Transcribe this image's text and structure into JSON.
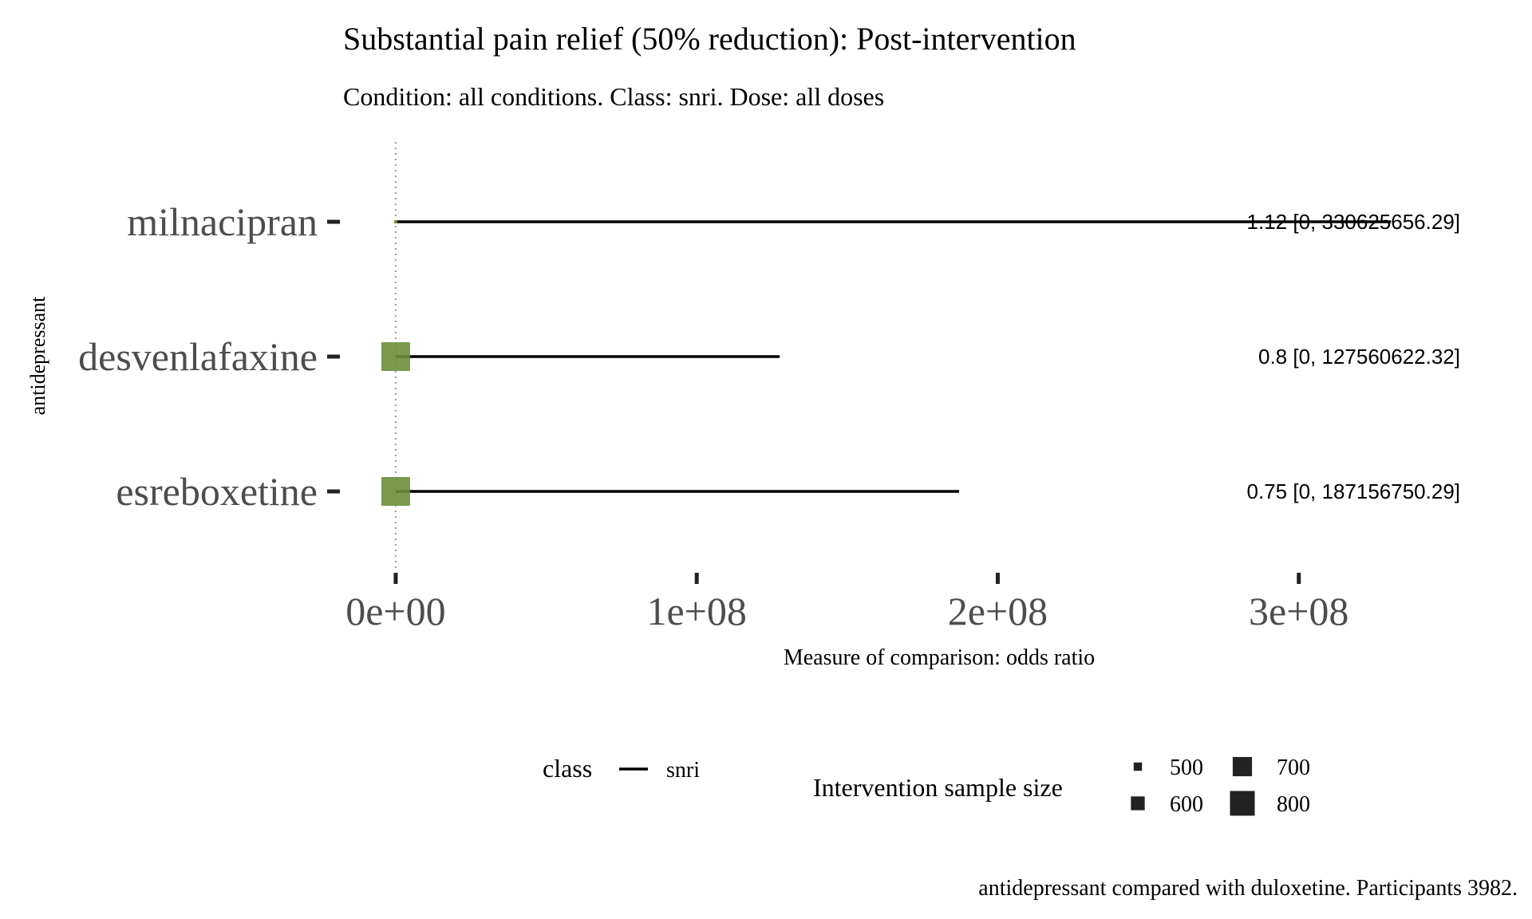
{
  "chart_data": {
    "type": "forest",
    "title": "Substantial pain relief (50% reduction): Post-intervention",
    "subtitle": "Condition: all conditions. Class: snri. Dose: all doses",
    "xlabel": "Measure of comparison: odds ratio",
    "ylabel": "antidepressant",
    "caption": "antidepressant compared with duloxetine. Participants 3982.",
    "xlim": [
      -18000000,
      378000000
    ],
    "x_ticks": [
      0,
      100000000,
      200000000,
      300000000
    ],
    "x_tick_labels": [
      "0e+00",
      "1e+08",
      "2e+08",
      "3e+08"
    ],
    "reference_line": 1,
    "grid": false,
    "rows": [
      {
        "name": "milnacipran",
        "estimate": 1.12,
        "lower": 0,
        "upper": 330625656.29,
        "sample_size": 450,
        "label": "1.12 [0, 330625656.29]"
      },
      {
        "name": "desvenlafaxine",
        "estimate": 0.8,
        "lower": 0,
        "upper": 127560622.32,
        "sample_size": 800,
        "label": "0.8 [0, 127560622.32]"
      },
      {
        "name": "esreboxetine",
        "estimate": 0.75,
        "lower": 0,
        "upper": 187156750.29,
        "sample_size": 800,
        "label": "0.75 [0, 187156750.29]"
      }
    ],
    "point_color": "#6b8e3a",
    "line_color": "#000000",
    "legend": {
      "placement": "bottom",
      "class_title": "class",
      "class_items": [
        "snri"
      ],
      "size_title": "Intervention sample size",
      "size_items": [
        {
          "label": "500",
          "value": 500
        },
        {
          "label": "600",
          "value": 600
        },
        {
          "label": "700",
          "value": 700
        },
        {
          "label": "800",
          "value": 800
        }
      ]
    }
  }
}
